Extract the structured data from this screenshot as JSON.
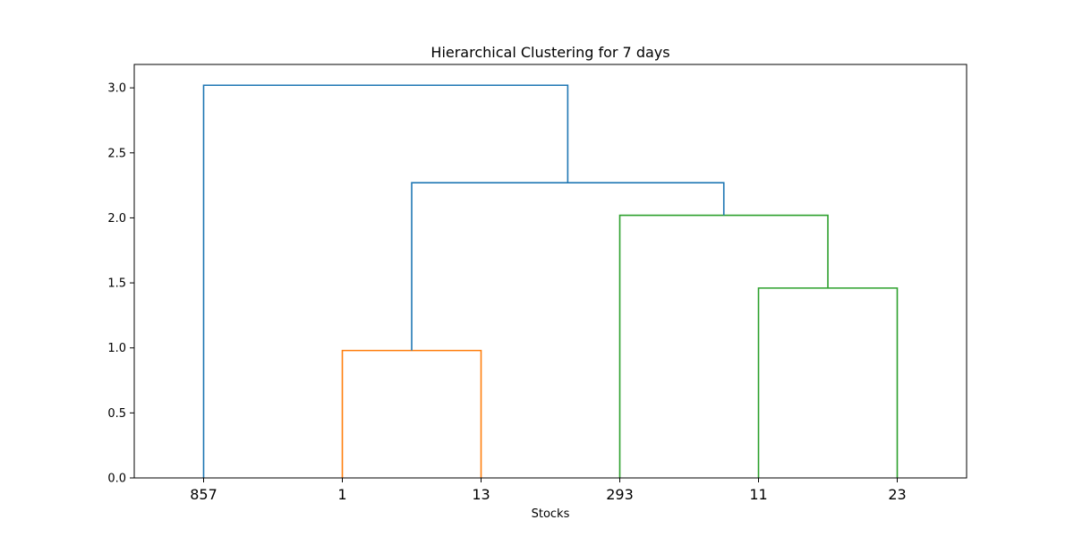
{
  "chart_data": {
    "type": "dendrogram",
    "title": "Hierarchical Clustering for 7 days",
    "xlabel": "Stocks",
    "ylabel": "",
    "ylim": [
      0,
      3.18
    ],
    "yticks": [
      "0.0",
      "0.5",
      "1.0",
      "1.5",
      "2.0",
      "2.5",
      "3.0"
    ],
    "leaves": [
      "857",
      "1",
      "13",
      "293",
      "11",
      "23"
    ],
    "links": [
      {
        "left": "1",
        "right": "13",
        "height": 0.98,
        "color": "#ff7f0e"
      },
      {
        "left": "11",
        "right": "23",
        "height": 1.46,
        "color": "#2ca02c"
      },
      {
        "left": "293",
        "right": "(11, 23)",
        "height": 2.02,
        "color": "#2ca02c"
      },
      {
        "left": "(1, 13)",
        "right": "(293, 11, 23)",
        "height": 2.27,
        "color": "#1f77b4"
      },
      {
        "left": "857",
        "right": "(1, 13, 293, 11, 23)",
        "height": 3.02,
        "color": "#1f77b4"
      }
    ],
    "grid": false,
    "legend": "none"
  }
}
